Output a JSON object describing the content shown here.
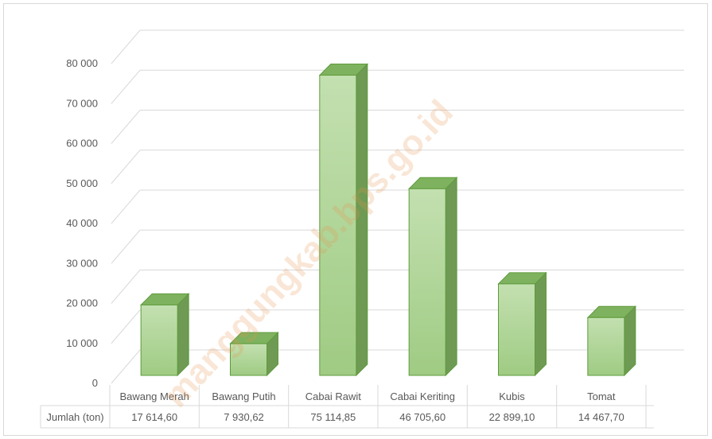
{
  "chart_data": {
    "type": "bar",
    "style": "3d-column-with-data-table",
    "title": "",
    "xlabel": "",
    "ylabel": "",
    "categories": [
      "Bawang Merah",
      "Bawang Putih",
      "Cabai Rawit",
      "Cabai Keriting",
      "Kubis",
      "Tomat"
    ],
    "series": [
      {
        "name": "Jumlah (ton)",
        "values": [
          17614.6,
          7930.62,
          75114.85,
          46705.6,
          22899.1,
          14467.7
        ],
        "labels": [
          "17 614,60",
          "7 930,62",
          "75 114,85",
          "46 705,60",
          "22 899,10",
          "14 467,70"
        ]
      }
    ],
    "ylim": [
      0,
      80000
    ],
    "yticks": [
      0,
      10000,
      20000,
      30000,
      40000,
      50000,
      60000,
      70000,
      80000
    ],
    "ytick_labels": [
      "0",
      "10 000",
      "20 000",
      "30 000",
      "40 000",
      "50 000",
      "60 000",
      "70 000",
      "80 000"
    ],
    "grid": true,
    "legend": "none",
    "colors": {
      "bar_front": "#a9d18e",
      "bar_side": "#6f9a54",
      "bar_top": "#7fb25f",
      "bar_edge": "#5e9b3c",
      "grid": "#d9d9d9"
    }
  },
  "watermark": "manggungkab.bps.go.id"
}
